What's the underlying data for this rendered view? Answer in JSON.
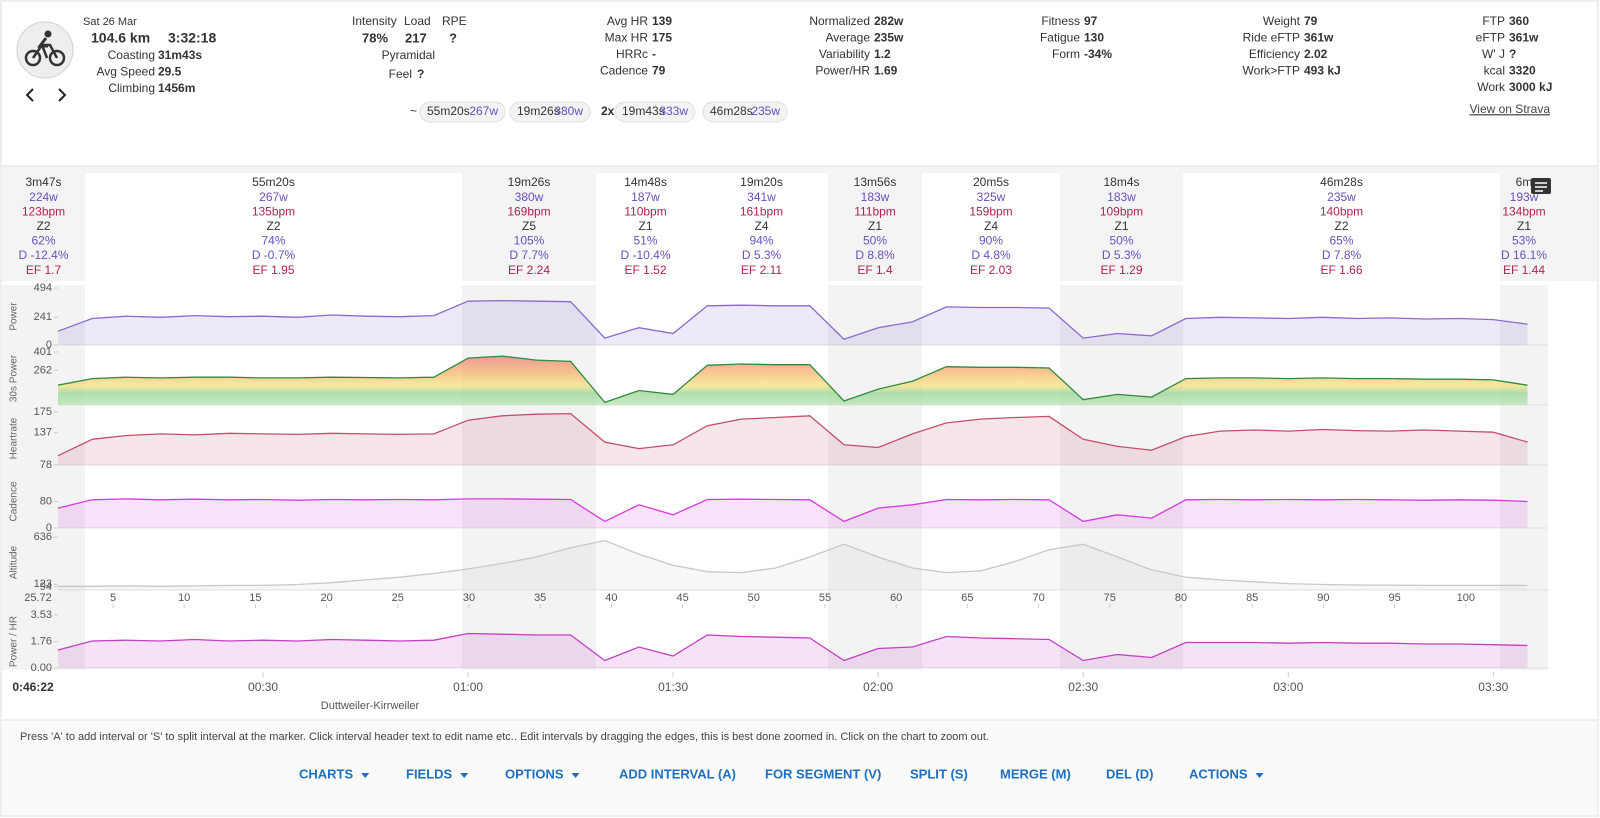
{
  "header": {
    "date": "Sat 26 Mar",
    "distance": "104.6 km",
    "duration": "3:32:18"
  },
  "summary": {
    "left": [
      {
        "label": "Coasting",
        "value": "31m43s"
      },
      {
        "label": "Avg Speed",
        "value": "29.5"
      },
      {
        "label": "Climbing",
        "value": "1456m"
      }
    ],
    "load": {
      "labels": [
        "Intensity",
        "Load",
        "RPE"
      ],
      "values": [
        "78%",
        "217",
        "?"
      ],
      "type": "Pyramidal",
      "feel_label": "Feel",
      "feel_value": "?"
    },
    "columns": [
      [
        {
          "label": "Avg HR",
          "value": "139"
        },
        {
          "label": "Max HR",
          "value": "175"
        },
        {
          "label": "HRRc",
          "value": "-"
        },
        {
          "label": "Cadence",
          "value": "79"
        }
      ],
      [
        {
          "label": "Normalized",
          "value": "282w"
        },
        {
          "label": "Average",
          "value": "235w"
        },
        {
          "label": "Variability",
          "value": "1.2"
        },
        {
          "label": "Power/HR",
          "value": "1.69"
        }
      ],
      [
        {
          "label": "Fitness",
          "value": "97"
        },
        {
          "label": "Fatigue",
          "value": "130"
        },
        {
          "label": "Form",
          "value": "-34%"
        }
      ],
      [
        {
          "label": "Weight",
          "value": "79"
        },
        {
          "label": "Ride eFTP",
          "value": "361w"
        },
        {
          "label": "Efficiency",
          "value": "2.02"
        },
        {
          "label": "Work>FTP",
          "value": "493 kJ"
        }
      ],
      [
        {
          "label": "FTP",
          "value": "360"
        },
        {
          "label": "eFTP",
          "value": "361w"
        },
        {
          "label": "W' J",
          "value": "?"
        },
        {
          "label": "kcal",
          "value": "3320"
        },
        {
          "label": "Work",
          "value": "3000 kJ"
        }
      ]
    ],
    "strava_link": "View on Strava"
  },
  "chips": {
    "prefix": "~",
    "items": [
      {
        "duration": "55m20s",
        "power": "267w"
      },
      {
        "duration": "19m26s",
        "power": "380w"
      },
      {
        "count": "2x",
        "duration": "19m43s",
        "power": "333w"
      },
      {
        "duration": "46m28s",
        "power": "235w"
      }
    ]
  },
  "intervals": [
    {
      "duration": "3m47s",
      "power": "224w",
      "heartrate": "123bpm",
      "zone": "Z2",
      "percent": "62%",
      "decoupling": "D -12.4%",
      "ef": "EF 1.7"
    },
    {
      "duration": "55m20s",
      "power": "267w",
      "heartrate": "135bpm",
      "zone": "Z2",
      "percent": "74%",
      "decoupling": "D -0.7%",
      "ef": "EF 1.95"
    },
    {
      "duration": "19m26s",
      "power": "380w",
      "heartrate": "169bpm",
      "zone": "Z5",
      "percent": "105%",
      "decoupling": "D 7.7%",
      "ef": "EF 2.24"
    },
    {
      "duration": "14m48s",
      "power": "187w",
      "heartrate": "110bpm",
      "zone": "Z1",
      "percent": "51%",
      "decoupling": "D -10.4%",
      "ef": "EF 1.52"
    },
    {
      "duration": "19m20s",
      "power": "341w",
      "heartrate": "161bpm",
      "zone": "Z4",
      "percent": "94%",
      "decoupling": "D 5.3%",
      "ef": "EF 2.11"
    },
    {
      "duration": "13m56s",
      "power": "183w",
      "heartrate": "111bpm",
      "zone": "Z1",
      "percent": "50%",
      "decoupling": "D 8.8%",
      "ef": "EF 1.4"
    },
    {
      "duration": "20m5s",
      "power": "325w",
      "heartrate": "159bpm",
      "zone": "Z4",
      "percent": "90%",
      "decoupling": "D 4.8%",
      "ef": "EF 2.03"
    },
    {
      "duration": "18m4s",
      "power": "183w",
      "heartrate": "109bpm",
      "zone": "Z1",
      "percent": "50%",
      "decoupling": "D 5.3%",
      "ef": "EF 1.29"
    },
    {
      "duration": "46m28s",
      "power": "235w",
      "heartrate": "140bpm",
      "zone": "Z2",
      "percent": "65%",
      "decoupling": "D 7.8%",
      "ef": "EF 1.66"
    },
    {
      "duration": "6m",
      "power": "193w",
      "heartrate": "134bpm",
      "zone": "Z1",
      "percent": "53%",
      "decoupling": "D 16.1%",
      "ef": "EF 1.44"
    }
  ],
  "xlim": [
    0,
    218
  ],
  "x_minutes": [
    0,
    5,
    10,
    15,
    20,
    25,
    30,
    35,
    40,
    45,
    50,
    55,
    60,
    65,
    70,
    75,
    80,
    85,
    90,
    95,
    100,
    105,
    110,
    115,
    120,
    125,
    130,
    135,
    140,
    145,
    150,
    155,
    160,
    165,
    170,
    175,
    180,
    185,
    190,
    195,
    200,
    205,
    210,
    215
  ],
  "panels": [
    {
      "label": "Power",
      "ylim": [
        0,
        494
      ],
      "yticks": [
        0,
        241,
        494
      ],
      "color": "#8a6ad0",
      "values": [
        120,
        230,
        250,
        240,
        255,
        245,
        250,
        240,
        260,
        250,
        245,
        255,
        380,
        385,
        380,
        375,
        60,
        150,
        100,
        340,
        345,
        340,
        340,
        50,
        150,
        200,
        330,
        325,
        325,
        320,
        60,
        100,
        80,
        230,
        240,
        235,
        230,
        240,
        230,
        235,
        225,
        230,
        220,
        180
      ]
    },
    {
      "label": "30s Power",
      "ylim": [
        0,
        401
      ],
      "yticks": [
        262,
        401
      ],
      "color": "#2e8b3e",
      "values": [
        150,
        200,
        210,
        205,
        210,
        210,
        205,
        205,
        210,
        208,
        205,
        210,
        355,
        370,
        340,
        330,
        20,
        110,
        80,
        300,
        310,
        305,
        305,
        30,
        120,
        180,
        290,
        285,
        285,
        280,
        40,
        80,
        60,
        200,
        205,
        205,
        200,
        205,
        200,
        200,
        195,
        195,
        190,
        150
      ]
    },
    {
      "label": "Heartrate",
      "ylim": [
        78,
        175
      ],
      "yticks": [
        78,
        137,
        175
      ],
      "color": "#c44f6d",
      "values": [
        95,
        125,
        132,
        135,
        133,
        136,
        135,
        134,
        136,
        135,
        134,
        135,
        160,
        168,
        171,
        172,
        120,
        108,
        115,
        150,
        162,
        165,
        168,
        115,
        110,
        135,
        155,
        162,
        165,
        167,
        125,
        112,
        105,
        130,
        140,
        142,
        140,
        143,
        141,
        140,
        142,
        140,
        138,
        120
      ]
    },
    {
      "label": "Cadence",
      "ylim": [
        0,
        160
      ],
      "yticks": [
        0,
        80
      ],
      "color": "#d63ae0",
      "values": [
        60,
        85,
        88,
        85,
        87,
        85,
        86,
        84,
        86,
        85,
        86,
        85,
        88,
        88,
        87,
        86,
        20,
        70,
        40,
        86,
        87,
        86,
        85,
        20,
        60,
        70,
        86,
        85,
        86,
        85,
        20,
        40,
        30,
        85,
        86,
        85,
        86,
        85,
        86,
        85,
        84,
        85,
        84,
        80
      ]
    },
    {
      "label": "Altitude",
      "ylim": [
        60,
        660
      ],
      "yticks": [
        94,
        123,
        636
      ],
      "color": "#c8c8c8",
      "values": [
        100,
        100,
        105,
        100,
        105,
        110,
        110,
        120,
        140,
        170,
        200,
        240,
        290,
        350,
        420,
        520,
        600,
        450,
        330,
        260,
        250,
        300,
        420,
        560,
        420,
        300,
        250,
        270,
        370,
        500,
        560,
        420,
        280,
        200,
        170,
        150,
        130,
        120,
        115,
        112,
        110,
        110,
        110,
        110
      ]
    },
    {
      "label": "Power / HR",
      "ylim": [
        0,
        3.53
      ],
      "yticks": [
        {
          "value": 0,
          "label": "0.00"
        },
        {
          "value": 1.76,
          "label": "1.76"
        },
        {
          "value": 3.53,
          "label": "3.53"
        }
      ],
      "color": "#c43fc4",
      "values": [
        1.2,
        1.8,
        1.85,
        1.8,
        1.9,
        1.8,
        1.85,
        1.8,
        1.9,
        1.85,
        1.8,
        1.85,
        2.3,
        2.25,
        2.2,
        2.2,
        0.5,
        1.4,
        0.8,
        2.2,
        2.1,
        2.05,
        2.0,
        0.5,
        1.3,
        1.4,
        2.1,
        2.0,
        1.95,
        1.9,
        0.5,
        0.9,
        0.7,
        1.7,
        1.7,
        1.7,
        1.65,
        1.7,
        1.65,
        1.65,
        1.6,
        1.6,
        1.55,
        1.5
      ]
    }
  ],
  "distance": {
    "start": "25.72",
    "ticks": [
      5,
      10,
      15,
      20,
      25,
      30,
      35,
      40,
      45,
      50,
      55,
      60,
      65,
      70,
      75,
      80,
      85,
      90,
      95,
      100
    ]
  },
  "time_axis": {
    "start": "0:46:22",
    "place": "Duttweiler-Kirrweiler",
    "ticks": [
      {
        "value": 30,
        "label": "00:30"
      },
      {
        "value": 60,
        "label": "01:00"
      },
      {
        "value": 90,
        "label": "01:30"
      },
      {
        "value": 120,
        "label": "02:00"
      },
      {
        "value": 150,
        "label": "02:30"
      },
      {
        "value": 180,
        "label": "03:00"
      },
      {
        "value": 210,
        "label": "03:30"
      }
    ]
  },
  "hint": "Press 'A' to add interval or 'S' to split interval at the marker. Click interval header text to edit name etc.. Edit intervals by dragging the edges, this is best done zoomed in. Click on the chart to zoom out.",
  "buttons": [
    "CHARTS",
    "FIELDS",
    "OPTIONS",
    "ADD INTERVAL (A)",
    "FOR SEGMENT (V)",
    "SPLIT (S)",
    "MERGE (M)",
    "DEL (D)",
    "ACTIONS"
  ]
}
